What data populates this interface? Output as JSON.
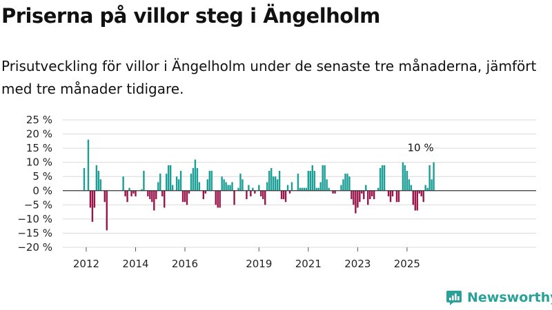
{
  "title": "Priserna på villor steg i Ängelholm",
  "subtitle": "Prisutveckling för villor i Ängelholm under de senaste tre månaderna, jämfört med tre månader tidigare.",
  "brand": {
    "name": "Newsworthy",
    "icon": "newsworthy-logo-icon"
  },
  "colors": {
    "positive": "#1a9e96",
    "negative": "#98144a",
    "grid": "#d9d9d9",
    "zero_line": "#333333",
    "brand": "#2aa198"
  },
  "chart_data": {
    "type": "bar",
    "ylabel": "",
    "xlabel": "",
    "ylim": [
      -20,
      25
    ],
    "y_unit": "%",
    "yticks": [
      25,
      20,
      15,
      10,
      5,
      0,
      -5,
      -10,
      -15,
      -20
    ],
    "ytick_labels": [
      "25 %",
      "20 %",
      "15 %",
      "10 %",
      "5 %",
      "0 %",
      "−5 %",
      "−10 %",
      "−15 %",
      "−20 %"
    ],
    "xticks": [
      {
        "label": "2012",
        "month": "2012-01"
      },
      {
        "label": "2014",
        "month": "2014-01"
      },
      {
        "label": "2016",
        "month": "2016-01"
      },
      {
        "label": "2019",
        "month": "2019-01"
      },
      {
        "label": "2021",
        "month": "2021-01"
      },
      {
        "label": "2023",
        "month": "2023-01"
      },
      {
        "label": "2025",
        "month": "2025-01"
      }
    ],
    "grid": true,
    "start_month": "2011-12",
    "values": [
      8,
      0,
      18,
      -6,
      -11,
      -6,
      9,
      7,
      4,
      0,
      -4,
      -14,
      0,
      0,
      0,
      0,
      0,
      0,
      0,
      5,
      -2,
      -4,
      1,
      -2,
      -1,
      -2,
      0,
      0,
      0.5,
      7,
      0,
      -2,
      -3,
      -4,
      -7,
      -3,
      3,
      6,
      -2,
      -6,
      6,
      9,
      9,
      2,
      0,
      5,
      4,
      7,
      -4,
      -4,
      -5,
      -1,
      6,
      8,
      11,
      8,
      3,
      0,
      -3,
      -1,
      4,
      7,
      7,
      0,
      -5,
      -6,
      -6,
      5,
      4,
      3,
      2,
      2,
      3,
      -5,
      0,
      1,
      6,
      4,
      0,
      -3,
      2,
      -2,
      1,
      -1,
      0,
      2,
      -2,
      -3,
      -5,
      3,
      7,
      8,
      5,
      5,
      4,
      7,
      -3,
      -3,
      -4,
      2,
      -1,
      3,
      0,
      0,
      6,
      1,
      1,
      1,
      1,
      7,
      7,
      9,
      7,
      1,
      1,
      3,
      9,
      9,
      4,
      1,
      0,
      -1,
      -1,
      0,
      0,
      2,
      4,
      6,
      6,
      5,
      -3,
      -5,
      -8,
      -6,
      -4,
      -1,
      -3,
      2,
      -5,
      -3,
      -2,
      -3,
      0,
      1,
      8,
      9,
      9,
      0,
      -2,
      -4,
      -2,
      0,
      -4,
      -4,
      0,
      10,
      9,
      7,
      4,
      2,
      -5,
      -7,
      -7,
      -1,
      -2,
      -4,
      2,
      1,
      9,
      4,
      10
    ],
    "annotations": [
      {
        "text": "10 %",
        "series_index": 170
      }
    ]
  }
}
